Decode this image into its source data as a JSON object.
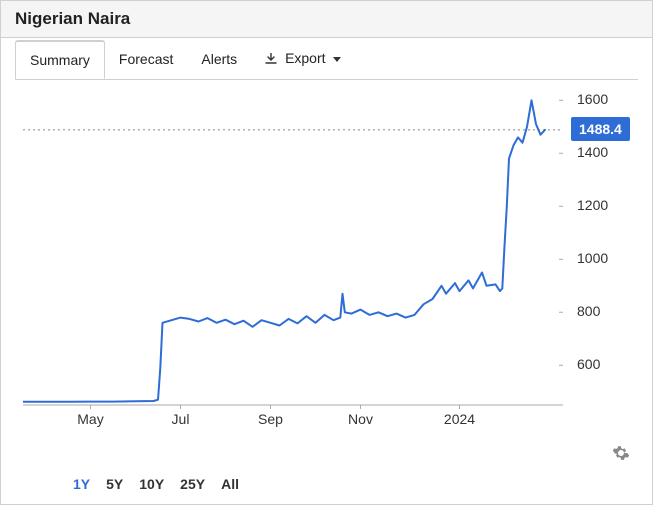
{
  "title": "Nigerian Naira",
  "tabs": {
    "items": [
      "Summary",
      "Forecast",
      "Alerts"
    ],
    "active_index": 0,
    "export_label": "Export"
  },
  "chart": {
    "type": "line",
    "line_color": "#2e6cd6",
    "line_width": 2,
    "background_color": "#ffffff",
    "grid_color": "#aaaaaa",
    "dotted_color": "#888888",
    "current_value": 1488.4,
    "current_badge_bg": "#2e6cd6",
    "current_badge_fg": "#ffffff",
    "ylim": [
      450,
      1650
    ],
    "yticks": [
      600,
      800,
      1000,
      1200,
      1400,
      1600
    ],
    "xlim": [
      0,
      12
    ],
    "xticks": [
      {
        "pos": 1.5,
        "label": "May"
      },
      {
        "pos": 3.5,
        "label": "Jul"
      },
      {
        "pos": 5.5,
        "label": "Sep"
      },
      {
        "pos": 7.5,
        "label": "Nov"
      },
      {
        "pos": 9.7,
        "label": "2024"
      }
    ],
    "series": [
      {
        "x": 0.0,
        "y": 462
      },
      {
        "x": 0.5,
        "y": 462
      },
      {
        "x": 1.0,
        "y": 462
      },
      {
        "x": 1.5,
        "y": 463
      },
      {
        "x": 2.0,
        "y": 463
      },
      {
        "x": 2.5,
        "y": 464
      },
      {
        "x": 2.9,
        "y": 465
      },
      {
        "x": 3.0,
        "y": 470
      },
      {
        "x": 3.05,
        "y": 590
      },
      {
        "x": 3.1,
        "y": 760
      },
      {
        "x": 3.3,
        "y": 770
      },
      {
        "x": 3.5,
        "y": 780
      },
      {
        "x": 3.7,
        "y": 775
      },
      {
        "x": 3.9,
        "y": 765
      },
      {
        "x": 4.1,
        "y": 778
      },
      {
        "x": 4.3,
        "y": 760
      },
      {
        "x": 4.5,
        "y": 772
      },
      {
        "x": 4.7,
        "y": 755
      },
      {
        "x": 4.9,
        "y": 768
      },
      {
        "x": 5.1,
        "y": 745
      },
      {
        "x": 5.3,
        "y": 770
      },
      {
        "x": 5.5,
        "y": 760
      },
      {
        "x": 5.7,
        "y": 750
      },
      {
        "x": 5.9,
        "y": 775
      },
      {
        "x": 6.1,
        "y": 758
      },
      {
        "x": 6.3,
        "y": 785
      },
      {
        "x": 6.5,
        "y": 760
      },
      {
        "x": 6.7,
        "y": 790
      },
      {
        "x": 6.9,
        "y": 770
      },
      {
        "x": 7.05,
        "y": 780
      },
      {
        "x": 7.1,
        "y": 870
      },
      {
        "x": 7.15,
        "y": 800
      },
      {
        "x": 7.3,
        "y": 795
      },
      {
        "x": 7.5,
        "y": 810
      },
      {
        "x": 7.7,
        "y": 790
      },
      {
        "x": 7.9,
        "y": 800
      },
      {
        "x": 8.1,
        "y": 785
      },
      {
        "x": 8.3,
        "y": 795
      },
      {
        "x": 8.5,
        "y": 780
      },
      {
        "x": 8.7,
        "y": 790
      },
      {
        "x": 8.9,
        "y": 830
      },
      {
        "x": 9.1,
        "y": 850
      },
      {
        "x": 9.3,
        "y": 900
      },
      {
        "x": 9.4,
        "y": 870
      },
      {
        "x": 9.6,
        "y": 910
      },
      {
        "x": 9.7,
        "y": 880
      },
      {
        "x": 9.9,
        "y": 920
      },
      {
        "x": 10.0,
        "y": 890
      },
      {
        "x": 10.2,
        "y": 950
      },
      {
        "x": 10.3,
        "y": 900
      },
      {
        "x": 10.5,
        "y": 905
      },
      {
        "x": 10.6,
        "y": 880
      },
      {
        "x": 10.65,
        "y": 890
      },
      {
        "x": 10.7,
        "y": 1050
      },
      {
        "x": 10.75,
        "y": 1200
      },
      {
        "x": 10.8,
        "y": 1380
      },
      {
        "x": 10.9,
        "y": 1430
      },
      {
        "x": 11.0,
        "y": 1460
      },
      {
        "x": 11.1,
        "y": 1440
      },
      {
        "x": 11.2,
        "y": 1500
      },
      {
        "x": 11.3,
        "y": 1600
      },
      {
        "x": 11.4,
        "y": 1510
      },
      {
        "x": 11.5,
        "y": 1470
      },
      {
        "x": 11.6,
        "y": 1488.4
      }
    ]
  },
  "ranges": {
    "items": [
      "1Y",
      "5Y",
      "10Y",
      "25Y",
      "All"
    ],
    "active_index": 0
  }
}
